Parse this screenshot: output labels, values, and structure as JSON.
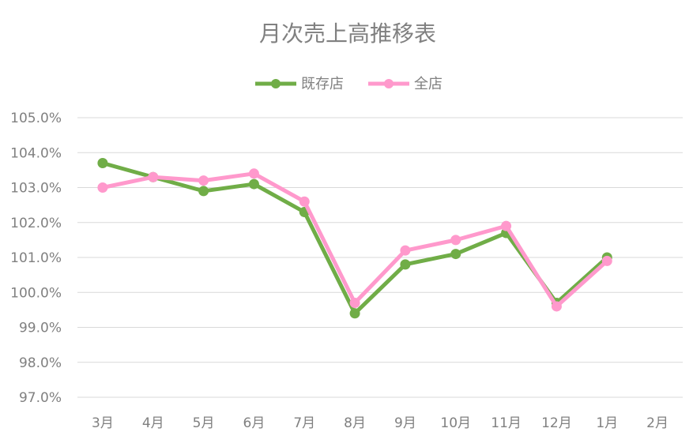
{
  "chart_data": {
    "type": "line",
    "title": "月次売上高推移表",
    "categories": [
      "3月",
      "4月",
      "5月",
      "6月",
      "7月",
      "8月",
      "9月",
      "10月",
      "11月",
      "12月",
      "1月",
      "2月"
    ],
    "ylim": [
      97.0,
      105.0
    ],
    "yticks": [
      "105.0%",
      "104.0%",
      "103.0%",
      "102.0%",
      "101.0%",
      "100.0%",
      "99.0%",
      "98.0%",
      "97.0%"
    ],
    "grid": true,
    "legend_position": "top",
    "series": [
      {
        "name": "既存店",
        "color": "#70ad47",
        "values": [
          103.7,
          103.3,
          102.9,
          103.1,
          102.3,
          99.4,
          100.8,
          101.1,
          101.7,
          99.7,
          101.0,
          null
        ]
      },
      {
        "name": "全店",
        "color": "#ff99cc",
        "values": [
          103.0,
          103.3,
          103.2,
          103.4,
          102.6,
          99.7,
          101.2,
          101.5,
          101.9,
          99.6,
          100.9,
          null
        ]
      }
    ]
  }
}
